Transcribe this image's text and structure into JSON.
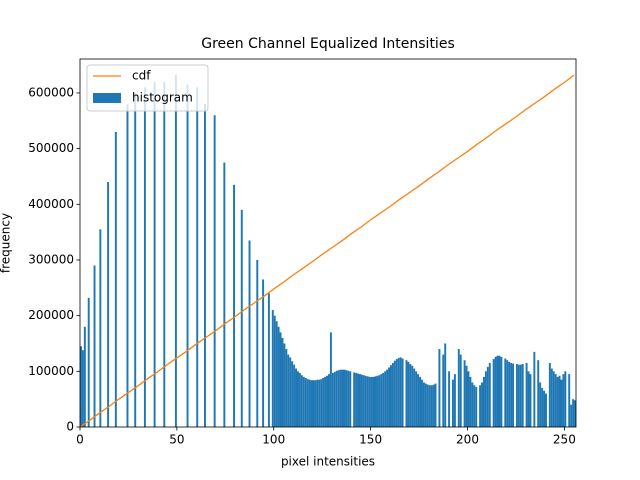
{
  "chart_data": {
    "type": "histogram",
    "title": "Green Channel Equalized Intensities",
    "xlabel": "pixel intensities",
    "ylabel": "frequency",
    "xlim": [
      0,
      256
    ],
    "ylim": [
      0,
      661000
    ],
    "xticks": [
      0,
      50,
      100,
      150,
      200,
      250
    ],
    "yticks": [
      0,
      100000,
      200000,
      300000,
      400000,
      500000,
      600000
    ],
    "legend": "upper left",
    "series": [
      {
        "name": "cdf",
        "type": "line",
        "color": "#ff7f0e",
        "x": [
          0,
          5,
          10,
          15,
          20,
          25,
          30,
          35,
          40,
          45,
          50,
          55,
          60,
          65,
          70,
          75,
          80,
          85,
          90,
          95,
          100,
          105,
          110,
          115,
          120,
          125,
          130,
          135,
          140,
          145,
          150,
          155,
          160,
          165,
          170,
          175,
          180,
          185,
          190,
          195,
          200,
          205,
          210,
          215,
          220,
          225,
          230,
          235,
          240,
          245,
          250,
          255
        ],
        "values": [
          0,
          12000,
          25000,
          37000,
          50000,
          62000,
          74000,
          87000,
          99000,
          112000,
          124000,
          136000,
          149000,
          161000,
          173000,
          186000,
          198000,
          211000,
          223000,
          235000,
          248000,
          260000,
          273000,
          285000,
          297000,
          310000,
          322000,
          334000,
          347000,
          359000,
          372000,
          384000,
          396000,
          409000,
          421000,
          433000,
          446000,
          458000,
          471000,
          483000,
          495000,
          508000,
          520000,
          533000,
          545000,
          557000,
          570000,
          582000,
          594000,
          607000,
          619000,
          632000
        ]
      },
      {
        "name": "histogram",
        "type": "histogram",
        "color": "#1f77b4",
        "bins": [
          0,
          1,
          2,
          3,
          4,
          5,
          6,
          7,
          8,
          9,
          10,
          11,
          12,
          13,
          14,
          15,
          16,
          17,
          18,
          19,
          20,
          21,
          22,
          23,
          24,
          25,
          26,
          27,
          28,
          29,
          30,
          31,
          32,
          33,
          34,
          35,
          36,
          37,
          38,
          39,
          40,
          41,
          42,
          43,
          44,
          45,
          46,
          47,
          48,
          49,
          50,
          51,
          52,
          53,
          54,
          55,
          56,
          57,
          58,
          59,
          60,
          61,
          62,
          63,
          64,
          65,
          66,
          67,
          68,
          69,
          70,
          71,
          72,
          73,
          74,
          75,
          76,
          77,
          78,
          79,
          80,
          81,
          82,
          83,
          84,
          85,
          86,
          87,
          88,
          89,
          90,
          91,
          92,
          93,
          94,
          95,
          96,
          97,
          98,
          99,
          100,
          101,
          102,
          103,
          104,
          105,
          106,
          107,
          108,
          109,
          110,
          111,
          112,
          113,
          114,
          115,
          116,
          117,
          118,
          119,
          120,
          121,
          122,
          123,
          124,
          125,
          126,
          127,
          128,
          129,
          130,
          131,
          132,
          133,
          134,
          135,
          136,
          137,
          138,
          139,
          140,
          141,
          142,
          143,
          144,
          145,
          146,
          147,
          148,
          149,
          150,
          151,
          152,
          153,
          154,
          155,
          156,
          157,
          158,
          159,
          160,
          161,
          162,
          163,
          164,
          165,
          166,
          167,
          168,
          169,
          170,
          171,
          172,
          173,
          174,
          175,
          176,
          177,
          178,
          179,
          180,
          181,
          182,
          183,
          184,
          185,
          186,
          187,
          188,
          189,
          190,
          191,
          192,
          193,
          194,
          195,
          196,
          197,
          198,
          199,
          200,
          201,
          202,
          203,
          204,
          205,
          206,
          207,
          208,
          209,
          210,
          211,
          212,
          213,
          214,
          215,
          216,
          217,
          218,
          219,
          220,
          221,
          222,
          223,
          224,
          225,
          226,
          227,
          228,
          229,
          230,
          231,
          232,
          233,
          234,
          235,
          236,
          237,
          238,
          239,
          240,
          241,
          242,
          243,
          244,
          245,
          246,
          247,
          248,
          249,
          250,
          251,
          252,
          253,
          254,
          255,
          256
        ],
        "values": [
          145000,
          138000,
          180000,
          0,
          232000,
          0,
          0,
          290000,
          0,
          0,
          355000,
          0,
          0,
          0,
          440000,
          0,
          0,
          0,
          530000,
          0,
          0,
          0,
          0,
          0,
          580000,
          0,
          0,
          0,
          600000,
          0,
          0,
          0,
          0,
          610000,
          0,
          0,
          0,
          0,
          620000,
          0,
          0,
          0,
          0,
          620000,
          0,
          0,
          0,
          0,
          0,
          632000,
          0,
          0,
          0,
          0,
          0,
          615000,
          0,
          0,
          0,
          0,
          610000,
          0,
          0,
          0,
          580000,
          0,
          0,
          0,
          0,
          560000,
          0,
          0,
          0,
          0,
          475000,
          0,
          0,
          0,
          0,
          435000,
          0,
          0,
          0,
          390000,
          0,
          0,
          0,
          335000,
          0,
          0,
          0,
          300000,
          0,
          0,
          265000,
          0,
          0,
          240000,
          0,
          210000,
          200000,
          190000,
          180000,
          170000,
          160000,
          150000,
          140000,
          130000,
          125000,
          118000,
          112000,
          105000,
          100000,
          97000,
          93000,
          90000,
          88000,
          86000,
          85000,
          84000,
          84000,
          84000,
          85000,
          85000,
          86000,
          88000,
          90000,
          92000,
          95000,
          170000,
          97000,
          99000,
          101000,
          102000,
          103000,
          103000,
          103000,
          102000,
          101000,
          100000,
          0,
          98000,
          97000,
          96000,
          95000,
          94000,
          93000,
          92000,
          91000,
          90000,
          90000,
          90000,
          91000,
          92000,
          93000,
          95000,
          97000,
          100000,
          103000,
          107000,
          111000,
          115000,
          119000,
          122000,
          124000,
          125000,
          123000,
          0,
          120000,
          117000,
          113000,
          110000,
          105000,
          100000,
          95000,
          90000,
          85000,
          80000,
          78000,
          76000,
          75000,
          75000,
          76000,
          78000,
          0,
          140000,
          0,
          130000,
          150000,
          0,
          100000,
          0,
          85000,
          95000,
          0,
          140000,
          130000,
          0,
          120000,
          110000,
          100000,
          90000,
          80000,
          75000,
          72000,
          0,
          75000,
          80000,
          90000,
          100000,
          108000,
          115000,
          0,
          122000,
          126000,
          128000,
          128000,
          126000,
          0,
          123000,
          120000,
          117000,
          115000,
          114000,
          0,
          113000,
          112000,
          112000,
          113000,
          0,
          115000,
          100000,
          95000,
          0,
          135000,
          0,
          120000,
          80000,
          70000,
          65000,
          60000,
          0,
          115000,
          105000,
          100000,
          95000,
          90000,
          92000,
          85000,
          95000,
          100000,
          0,
          95000,
          40000,
          50000,
          48000
        ]
      }
    ]
  }
}
